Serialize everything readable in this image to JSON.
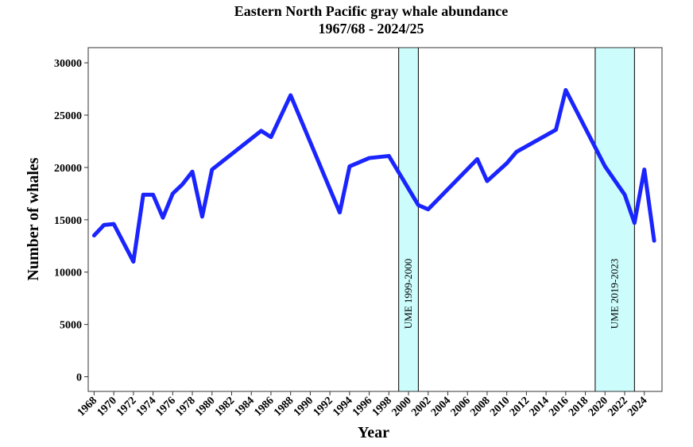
{
  "chart_data": {
    "type": "line",
    "title": "Eastern North Pacific gray whale abundance",
    "subtitle": "1967/68 - 2024/25",
    "x_label": "Year",
    "y_label": "Number of whales",
    "x": [
      1968,
      1969,
      1970,
      1972,
      1973,
      1974,
      1975,
      1976,
      1977,
      1978,
      1979,
      1980,
      1985,
      1986,
      1988,
      1993,
      1994,
      1996,
      1998,
      2001,
      2002,
      2007,
      2008,
      2010,
      2011,
      2015,
      2016,
      2020,
      2022,
      2023,
      2024,
      2025
    ],
    "series": [
      {
        "color": "#1a24ff",
        "values": [
          13500,
          14500,
          14600,
          11000,
          17400,
          17400,
          15200,
          17500,
          18400,
          19600,
          15300,
          19800,
          23500,
          22900,
          26900,
          15700,
          20100,
          20900,
          21100,
          16400,
          16000,
          20800,
          18700,
          20400,
          21500,
          23600,
          27400,
          20100,
          17400,
          14700,
          19800,
          13000
        ]
      }
    ],
    "bands": [
      {
        "label": "UME 1999-2000",
        "start": 1999,
        "end": 2001,
        "color": "#ccfcfc"
      },
      {
        "label": "UME 2019-2023",
        "start": 2019,
        "end": 2023,
        "color": "#ccfcfc"
      }
    ],
    "xlim": [
      1967.4,
      2025.8
    ],
    "ylim": [
      -1400,
      31450
    ],
    "xticks": [
      1968,
      1970,
      1972,
      1974,
      1976,
      1978,
      1980,
      1982,
      1984,
      1986,
      1988,
      1990,
      1992,
      1994,
      1996,
      1998,
      2000,
      2002,
      2004,
      2006,
      2008,
      2010,
      2012,
      2014,
      2016,
      2018,
      2020,
      2022,
      2024
    ],
    "yticks": [
      0,
      5000,
      10000,
      15000,
      20000,
      25000,
      30000
    ]
  }
}
